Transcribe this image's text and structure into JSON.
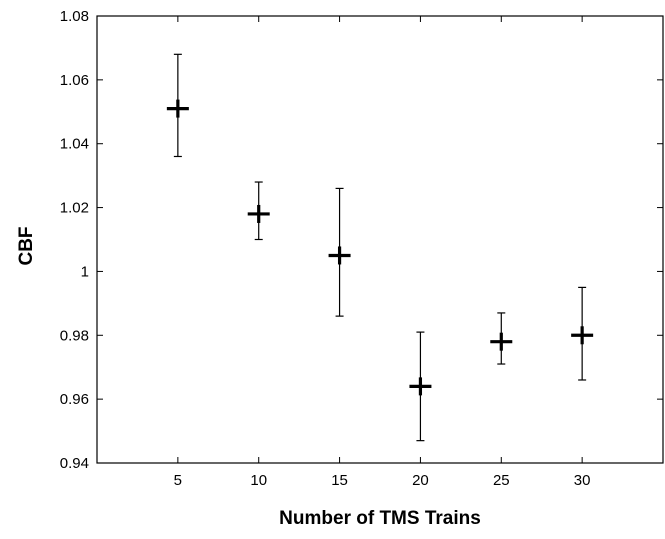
{
  "chart_data": {
    "type": "scatter",
    "title": "",
    "xlabel": "Number of TMS Trains",
    "ylabel": "CBF",
    "xlim": [
      0,
      35
    ],
    "ylim": [
      0.94,
      1.08
    ],
    "x_ticks": [
      5,
      10,
      15,
      20,
      25,
      30
    ],
    "x_tick_labels": [
      "5",
      "10",
      "15",
      "20",
      "25",
      "30"
    ],
    "y_ticks": [
      0.94,
      0.96,
      0.98,
      1.0,
      1.02,
      1.04,
      1.06,
      1.08
    ],
    "y_tick_labels": [
      "0.94",
      "0.96",
      "0.98",
      "1",
      "1.02",
      "1.04",
      "1.06",
      "1.08"
    ],
    "grid": false,
    "marker": "plus",
    "series": [
      {
        "points": [
          {
            "x": 5,
            "y": 1.051,
            "err_low": 1.036,
            "err_high": 1.068
          },
          {
            "x": 10,
            "y": 1.018,
            "err_low": 1.01,
            "err_high": 1.028
          },
          {
            "x": 15,
            "y": 1.005,
            "err_low": 0.986,
            "err_high": 1.026
          },
          {
            "x": 20,
            "y": 0.964,
            "err_low": 0.947,
            "err_high": 0.981
          },
          {
            "x": 25,
            "y": 0.978,
            "err_low": 0.971,
            "err_high": 0.987
          },
          {
            "x": 30,
            "y": 0.98,
            "err_low": 0.966,
            "err_high": 0.995
          }
        ]
      }
    ],
    "colors": {
      "marker": "#000000",
      "axis": "#000000",
      "background": "#ffffff"
    }
  }
}
